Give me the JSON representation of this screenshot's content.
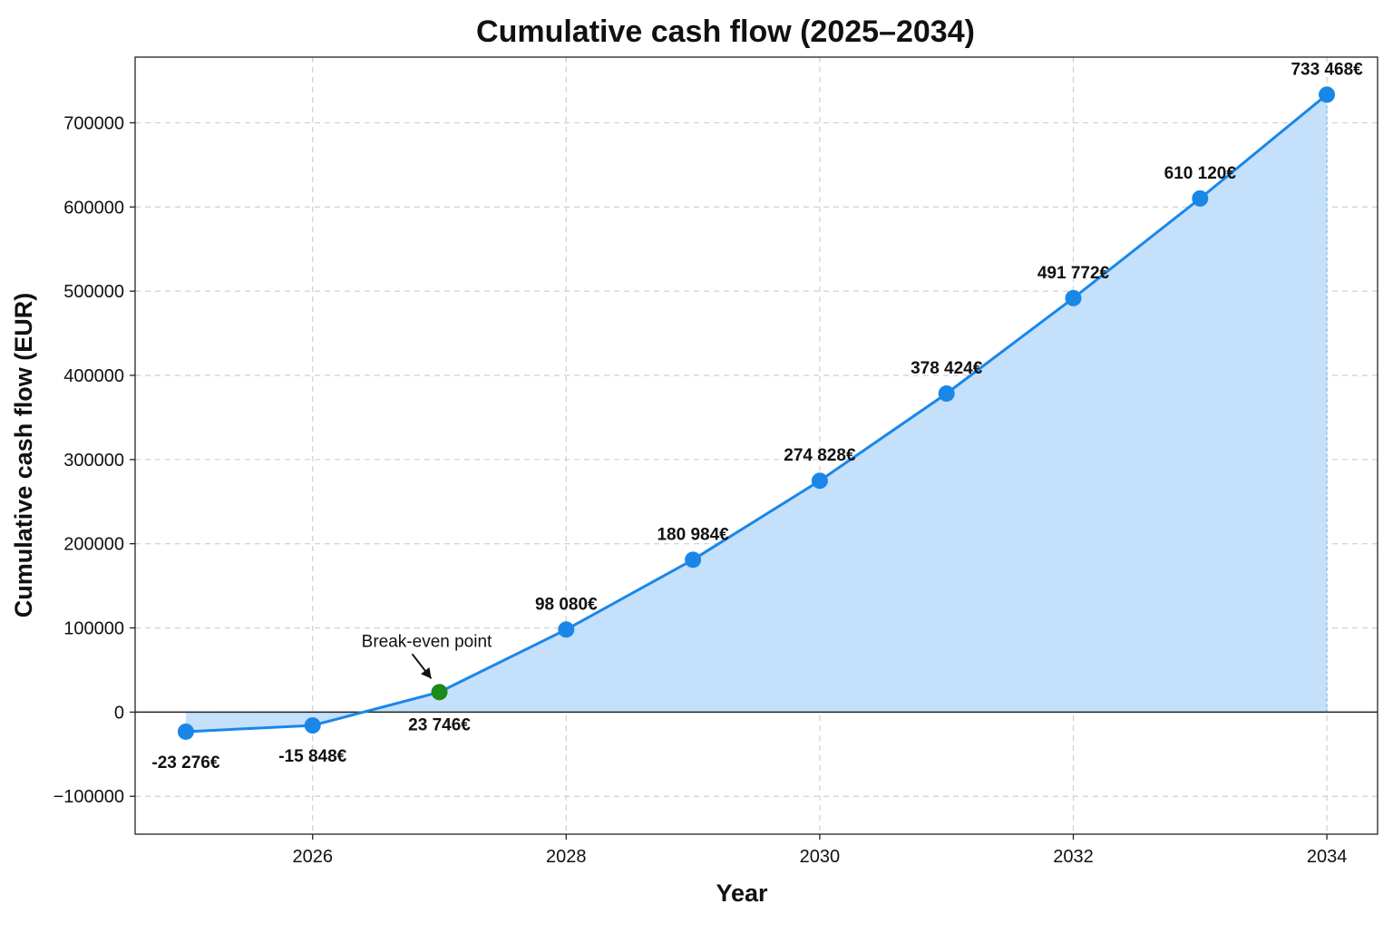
{
  "chart_data": {
    "type": "line",
    "title": "Cumulative cash flow (2025–2034)",
    "xlabel": "Year",
    "ylabel": "Cumulative cash flow (EUR)",
    "x": [
      2025,
      2026,
      2027,
      2028,
      2029,
      2030,
      2031,
      2032,
      2033,
      2034
    ],
    "values": [
      -23276,
      -15848,
      23746,
      98080,
      180984,
      274828,
      378424,
      491772,
      610120,
      733468
    ],
    "data_labels": [
      "-23 276€",
      "-15 848€",
      "23 746€",
      "98 080€",
      "180 984€",
      "274 828€",
      "378 424€",
      "491 772€",
      "610 120€",
      "733 468€"
    ],
    "xlim": [
      2024.6,
      2034.4
    ],
    "ylim": [
      -145000,
      778000
    ],
    "x_ticks": [
      2026,
      2028,
      2030,
      2032,
      2034
    ],
    "x_tick_labels": [
      "2026",
      "2028",
      "2030",
      "2032",
      "2034"
    ],
    "y_ticks": [
      -100000,
      0,
      100000,
      200000,
      300000,
      400000,
      500000,
      600000,
      700000
    ],
    "y_tick_labels": [
      "−100000",
      "0",
      "100000",
      "200000",
      "300000",
      "400000",
      "500000",
      "600000",
      "700000"
    ],
    "grid": true,
    "area_fill": true,
    "zero_line": true,
    "colors": {
      "line": "#1a86e8",
      "marker": "#1a86e8",
      "highlight_marker": "#1a8a1a",
      "fill": "#c4e0fa",
      "grid": "#cfcfcf",
      "zero_line": "#222222"
    },
    "annotation": {
      "text": "Break-even point",
      "x": 2027,
      "y": 23746
    },
    "highlight_index": 2
  }
}
